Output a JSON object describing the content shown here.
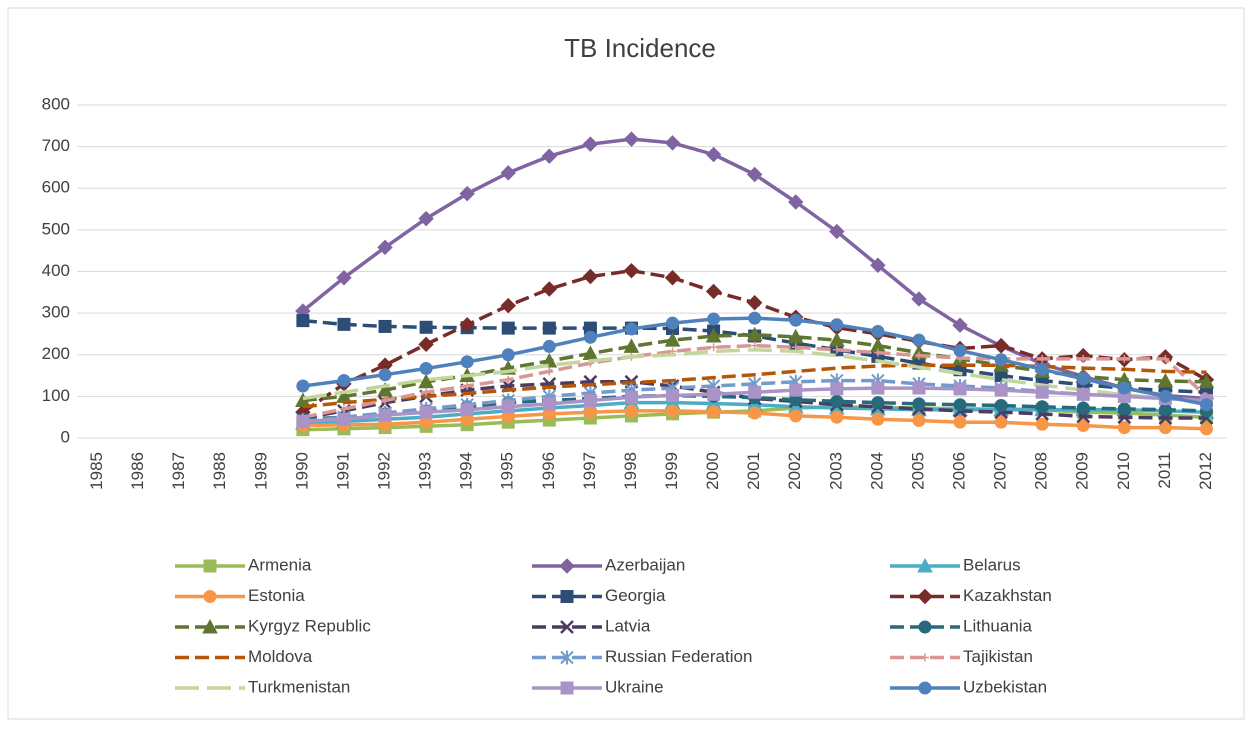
{
  "chart_data": {
    "type": "line",
    "title": "TB Incidence",
    "categories": [
      "1985",
      "1986",
      "1987",
      "1988",
      "1989",
      "1990",
      "1991",
      "1992",
      "1993",
      "1994",
      "1995",
      "1996",
      "1997",
      "1998",
      "1999",
      "2000",
      "2001",
      "2002",
      "2003",
      "2004",
      "2005",
      "2006",
      "2007",
      "2008",
      "2009",
      "2010",
      "2011",
      "2012"
    ],
    "ylim": [
      0,
      800
    ],
    "yticks": [
      0,
      100,
      200,
      300,
      400,
      500,
      600,
      700,
      800
    ],
    "grid": true,
    "legend": "bottom",
    "series": [
      {
        "name": "Armenia",
        "color": "#9bbb59",
        "marker": "square",
        "dash": "solid",
        "values": [
          null,
          null,
          null,
          null,
          null,
          20,
          22,
          25,
          28,
          32,
          38,
          43,
          48,
          53,
          58,
          62,
          65,
          72,
          75,
          73,
          72,
          70,
          70,
          68,
          62,
          60,
          55,
          50
        ]
      },
      {
        "name": "Azerbaijan",
        "color": "#8064a2",
        "marker": "diamond",
        "dash": "solid",
        "values": [
          null,
          null,
          null,
          null,
          null,
          305,
          385,
          458,
          527,
          587,
          637,
          677,
          706,
          718,
          709,
          681,
          633,
          567,
          496,
          415,
          334,
          271,
          221,
          178,
          148,
          120,
          102,
          95
        ]
      },
      {
        "name": "Belarus",
        "color": "#4bacc6",
        "marker": "triangle",
        "dash": "solid",
        "values": [
          null,
          null,
          null,
          null,
          null,
          35,
          40,
          45,
          50,
          58,
          65,
          72,
          78,
          85,
          85,
          83,
          80,
          75,
          72,
          70,
          68,
          68,
          68,
          68,
          68,
          68,
          65,
          62
        ]
      },
      {
        "name": "Estonia",
        "color": "#f79646",
        "marker": "circle",
        "dash": "solid",
        "values": [
          null,
          null,
          null,
          null,
          null,
          30,
          32,
          33,
          38,
          45,
          52,
          58,
          62,
          65,
          65,
          63,
          60,
          53,
          50,
          45,
          42,
          38,
          38,
          33,
          30,
          25,
          25,
          22
        ]
      },
      {
        "name": "Georgia",
        "color": "#2c4d75",
        "marker": "square",
        "dash": "dash",
        "values": [
          null,
          null,
          null,
          null,
          null,
          282,
          273,
          268,
          266,
          265,
          264,
          264,
          264,
          264,
          263,
          257,
          245,
          228,
          212,
          196,
          180,
          164,
          150,
          138,
          128,
          120,
          114,
          110
        ]
      },
      {
        "name": "Kazakhstan",
        "color": "#772c2a",
        "marker": "diamond",
        "dash": "dash",
        "values": [
          null,
          null,
          null,
          null,
          null,
          62,
          130,
          175,
          225,
          272,
          318,
          358,
          388,
          402,
          385,
          352,
          325,
          290,
          265,
          250,
          232,
          215,
          222,
          190,
          198,
          188,
          195,
          140
        ]
      },
      {
        "name": "Kyrgyz Republic",
        "color": "#5f7530",
        "marker": "triangle",
        "dash": "dash",
        "values": [
          null,
          null,
          null,
          null,
          null,
          90,
          100,
          115,
          135,
          150,
          168,
          185,
          203,
          220,
          235,
          245,
          248,
          243,
          235,
          222,
          205,
          190,
          175,
          160,
          148,
          140,
          137,
          135
        ]
      },
      {
        "name": "Latvia",
        "color": "#4d3b62",
        "marker": "x",
        "dash": "dash",
        "values": [
          null,
          null,
          null,
          null,
          null,
          48,
          65,
          85,
          100,
          115,
          125,
          130,
          135,
          135,
          125,
          110,
          95,
          88,
          80,
          75,
          70,
          65,
          62,
          58,
          52,
          50,
          48,
          48
        ]
      },
      {
        "name": "Lithuania",
        "color": "#276a7c",
        "marker": "circle",
        "dash": "dash",
        "values": [
          null,
          null,
          null,
          null,
          null,
          45,
          50,
          58,
          65,
          75,
          85,
          90,
          95,
          100,
          102,
          100,
          97,
          92,
          88,
          85,
          82,
          80,
          78,
          75,
          72,
          70,
          68,
          65
        ]
      },
      {
        "name": "Moldova",
        "color": "#b65708",
        "marker": "none",
        "dash": "dash",
        "values": [
          null,
          null,
          null,
          null,
          null,
          75,
          85,
          93,
          100,
          107,
          115,
          122,
          128,
          133,
          138,
          145,
          152,
          160,
          168,
          173,
          175,
          175,
          175,
          172,
          168,
          165,
          160,
          158
        ]
      },
      {
        "name": "Russian Federation",
        "color": "#729aca",
        "marker": "star",
        "dash": "dash",
        "values": [
          null,
          null,
          null,
          null,
          null,
          40,
          50,
          60,
          70,
          80,
          90,
          100,
          108,
          115,
          120,
          125,
          130,
          135,
          138,
          138,
          130,
          125,
          120,
          112,
          105,
          100,
          95,
          90
        ]
      },
      {
        "name": "Tajikistan",
        "color": "#d99694",
        "marker": "plus",
        "dash": "dash",
        "values": [
          null,
          null,
          null,
          null,
          null,
          50,
          70,
          90,
          110,
          125,
          140,
          160,
          180,
          195,
          208,
          218,
          222,
          218,
          212,
          205,
          198,
          192,
          190,
          190,
          190,
          190,
          190,
          100
        ]
      },
      {
        "name": "Turkmenistan",
        "color": "#c3d69b",
        "marker": "none",
        "dash": "longdash",
        "values": [
          null,
          null,
          null,
          null,
          null,
          95,
          110,
          125,
          140,
          150,
          160,
          175,
          185,
          195,
          200,
          208,
          212,
          208,
          198,
          185,
          170,
          155,
          140,
          127,
          115,
          104,
          95,
          88
        ]
      },
      {
        "name": "Ukraine",
        "color": "#a993c7",
        "marker": "square",
        "dash": "solid",
        "values": [
          null,
          null,
          null,
          null,
          null,
          40,
          45,
          55,
          62,
          68,
          75,
          82,
          90,
          98,
          102,
          105,
          110,
          115,
          118,
          120,
          120,
          118,
          115,
          110,
          105,
          100,
          95,
          90
        ]
      },
      {
        "name": "Uzbekistan",
        "color": "#4f81bd",
        "marker": "circle",
        "dash": "solid",
        "values": [
          null,
          null,
          null,
          null,
          null,
          125,
          138,
          152,
          167,
          183,
          200,
          220,
          242,
          262,
          276,
          286,
          288,
          283,
          272,
          256,
          235,
          210,
          188,
          165,
          142,
          120,
          100,
          80
        ]
      }
    ]
  }
}
